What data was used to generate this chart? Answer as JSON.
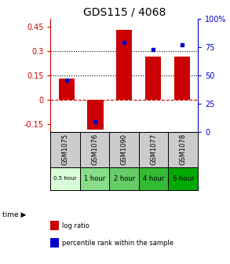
{
  "title": "GDS115 / 4068",
  "samples": [
    "GSM1075",
    "GSM1076",
    "GSM1090",
    "GSM1077",
    "GSM1078"
  ],
  "time_labels": [
    "0.5 hour",
    "1 hour",
    "2 hour",
    "4 hour",
    "6 hour"
  ],
  "log_ratios": [
    0.13,
    -0.185,
    0.43,
    0.265,
    0.265
  ],
  "percentile_ranks": [
    46,
    9,
    79,
    73,
    77
  ],
  "bar_color": "#cc0000",
  "dot_color": "#0000cc",
  "ylim_left": [
    -0.2,
    0.5
  ],
  "ylim_right": [
    0,
    100
  ],
  "yticks_left": [
    -0.15,
    0,
    0.15,
    0.3,
    0.45
  ],
  "ytick_labels_left": [
    "-0.15",
    "0",
    "0.15",
    "0.3",
    "0.45"
  ],
  "yticks_right": [
    0,
    25,
    50,
    75,
    100
  ],
  "ytick_labels_right": [
    "0",
    "25",
    "50",
    "75",
    "100%"
  ],
  "hline_y": [
    0.15,
    0.3
  ],
  "zero_line_color": "#cc0000",
  "bg_color": "#ffffff",
  "title_fontsize": 10,
  "tick_fontsize": 7,
  "time_bg_colors": [
    "#d8ffd8",
    "#88dd88",
    "#66cc66",
    "#33bb33",
    "#00aa00"
  ],
  "gsm_bg_color": "#cccccc",
  "bar_width": 0.55,
  "legend_items": [
    "log ratio",
    "percentile rank within the sample"
  ],
  "legend_colors": [
    "#cc0000",
    "#0000cc"
  ]
}
